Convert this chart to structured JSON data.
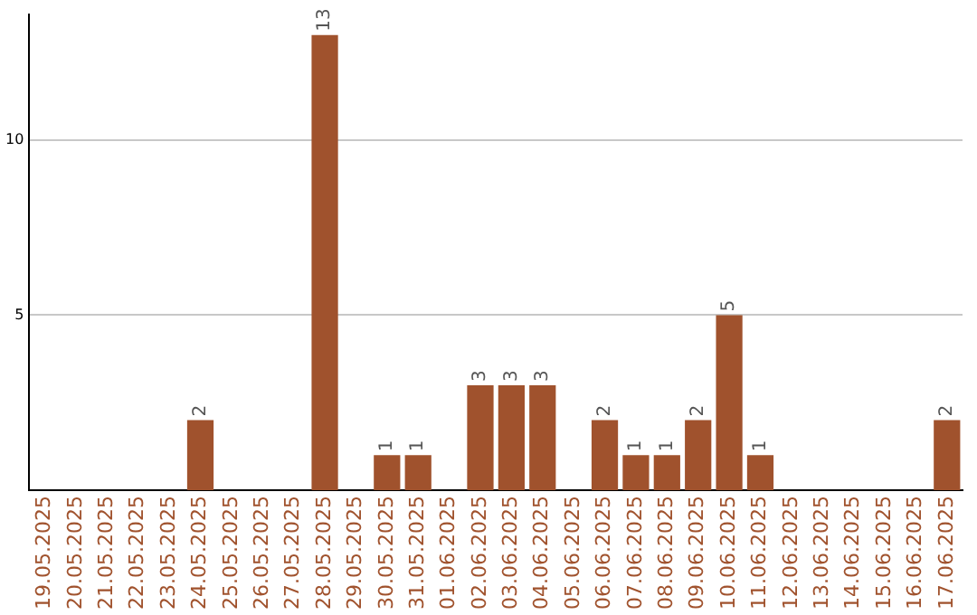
{
  "chart_data": {
    "type": "bar",
    "categories": [
      "19.05.2025",
      "20.05.2025",
      "21.05.2025",
      "22.05.2025",
      "23.05.2025",
      "24.05.2025",
      "25.05.2025",
      "26.05.2025",
      "27.05.2025",
      "28.05.2025",
      "29.05.2025",
      "30.05.2025",
      "31.05.2025",
      "01.06.2025",
      "02.06.2025",
      "03.06.2025",
      "04.06.2025",
      "05.06.2025",
      "06.06.2025",
      "07.06.2025",
      "08.06.2025",
      "09.06.2025",
      "10.06.2025",
      "11.06.2025",
      "12.06.2025",
      "13.06.2025",
      "14.06.2025",
      "15.06.2025",
      "16.06.2025",
      "17.06.2025"
    ],
    "values": [
      0,
      0,
      0,
      0,
      0,
      2,
      0,
      0,
      0,
      13,
      0,
      1,
      1,
      0,
      3,
      3,
      3,
      0,
      2,
      1,
      1,
      2,
      5,
      1,
      0,
      0,
      0,
      0,
      0,
      2
    ],
    "value_labels": [
      null,
      null,
      null,
      null,
      null,
      "2",
      null,
      null,
      null,
      "13",
      null,
      "1",
      "1",
      null,
      "3",
      "3",
      "3",
      null,
      "2",
      "1",
      "1",
      "2",
      "5",
      "1",
      null,
      null,
      null,
      null,
      null,
      "2"
    ],
    "color": "#a0522d",
    "ylim": [
      0,
      13.6
    ],
    "yticks": [
      5,
      10
    ],
    "grid": "y"
  }
}
